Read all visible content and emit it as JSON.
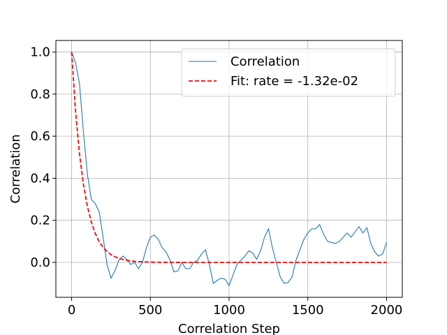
{
  "chart_data": {
    "type": "line",
    "xlabel": "Correlation Step",
    "ylabel": "Correlation",
    "x": [
      0,
      25,
      50,
      75,
      100,
      125,
      150,
      175,
      200,
      225,
      250,
      275,
      300,
      325,
      350,
      375,
      400,
      425,
      450,
      475,
      500,
      525,
      550,
      575,
      600,
      625,
      650,
      675,
      700,
      725,
      750,
      775,
      800,
      825,
      850,
      875,
      900,
      925,
      950,
      975,
      1000,
      1025,
      1050,
      1075,
      1100,
      1125,
      1150,
      1175,
      1200,
      1225,
      1250,
      1275,
      1300,
      1325,
      1350,
      1375,
      1400,
      1425,
      1450,
      1475,
      1500,
      1525,
      1550,
      1575,
      1600,
      1625,
      1650,
      1675,
      1700,
      1725,
      1750,
      1775,
      1800,
      1825,
      1850,
      1875,
      1900,
      1925,
      1950,
      1975,
      2000
    ],
    "series": [
      {
        "name": "Correlation",
        "color": "#1f77b4",
        "dash": false,
        "values": [
          1.0,
          0.95,
          0.85,
          0.62,
          0.42,
          0.3,
          0.28,
          0.24,
          0.12,
          -0.01,
          -0.075,
          -0.04,
          0.01,
          0.03,
          0.015,
          -0.01,
          0.0,
          -0.03,
          0.0,
          0.07,
          0.12,
          0.13,
          0.11,
          0.07,
          0.05,
          0.01,
          -0.045,
          -0.04,
          0.0,
          -0.03,
          -0.03,
          0.0,
          0.01,
          0.04,
          0.06,
          -0.01,
          -0.1,
          -0.085,
          -0.075,
          -0.08,
          -0.11,
          -0.06,
          -0.01,
          0.01,
          0.03,
          0.055,
          0.045,
          0.015,
          0.055,
          0.12,
          0.16,
          0.07,
          0.0,
          -0.07,
          -0.1,
          -0.095,
          -0.07,
          0.01,
          0.06,
          0.11,
          0.14,
          0.16,
          0.16,
          0.18,
          0.135,
          0.1,
          0.095,
          0.09,
          0.1,
          0.12,
          0.14,
          0.12,
          0.145,
          0.17,
          0.14,
          0.165,
          0.09,
          0.05,
          0.03,
          0.04,
          0.095
        ]
      },
      {
        "name": "Fit: rate = -1.32e-02",
        "color": "#ff0000",
        "dash": true,
        "values": [
          1.0,
          0.719,
          0.517,
          0.372,
          0.267,
          0.192,
          0.138,
          0.099,
          0.071,
          0.051,
          0.037,
          0.027,
          0.019,
          0.014,
          0.0098,
          0.0071,
          0.0051,
          0.0037,
          0.0026,
          0.0019,
          0.0014,
          0.001,
          0.0007,
          0.0005,
          0.0004,
          0.0003,
          0.0002,
          0.0001,
          0,
          0,
          0,
          0,
          0,
          0,
          0,
          0,
          0,
          0,
          0,
          0,
          0,
          0,
          0,
          0,
          0,
          0,
          0,
          0,
          0,
          0,
          0,
          0,
          0,
          0,
          0,
          0,
          0,
          0,
          0,
          0,
          0,
          0,
          0,
          0,
          0,
          0,
          0,
          0,
          0,
          0,
          0,
          0,
          0,
          0,
          0,
          0,
          0,
          0,
          0,
          0,
          0
        ]
      }
    ],
    "xlim": [
      -100,
      2100
    ],
    "ylim": [
      -0.166,
      1.055
    ],
    "xticks": [
      0,
      500,
      1000,
      1500,
      2000
    ],
    "yticks": [
      {
        "value": 0,
        "label": "0.0"
      },
      {
        "value": 0.2,
        "label": "0.2"
      },
      {
        "value": 0.4,
        "label": "0.4"
      },
      {
        "value": 0.6,
        "label": "0.6"
      },
      {
        "value": 0.8,
        "label": "0.8"
      },
      {
        "value": 1,
        "label": "1.0"
      }
    ],
    "grid": true,
    "legend": "upper right"
  }
}
